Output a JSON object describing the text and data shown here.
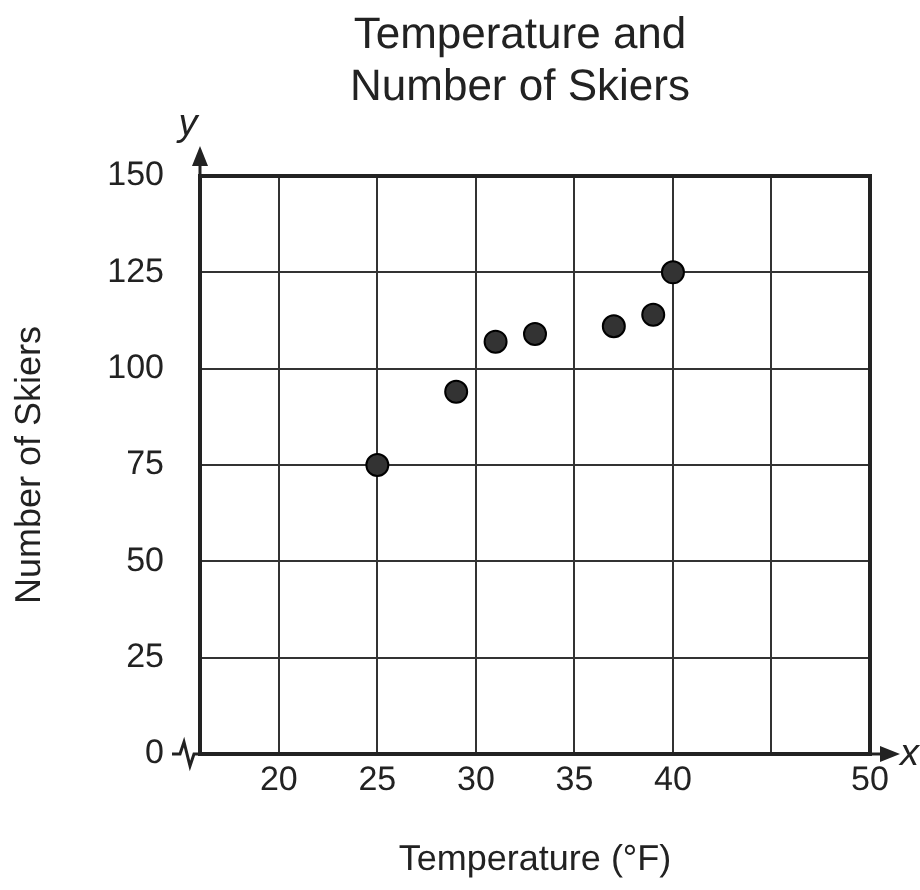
{
  "chart_data": {
    "type": "scatter",
    "title": "Temperature and Number of Skiers",
    "xlabel": "Temperature (°F)",
    "ylabel": "Number of Skiers",
    "annotations": [
      "x",
      "y"
    ],
    "series": [
      {
        "color": "#333333",
        "x": [
          25,
          29,
          31,
          33,
          37,
          39,
          40
        ],
        "values": [
          75,
          94,
          107,
          109,
          111,
          114,
          125
        ]
      }
    ],
    "xlim": [
      16,
      50
    ],
    "xticks": [
      20,
      25,
      30,
      35,
      40,
      {
        "value": 45,
        "label": null
      },
      50
    ],
    "ylim": [
      0,
      150
    ],
    "yticks": [
      0,
      25,
      50,
      75,
      100,
      125,
      150
    ],
    "grid": true,
    "legend": false,
    "marker": "circle"
  }
}
